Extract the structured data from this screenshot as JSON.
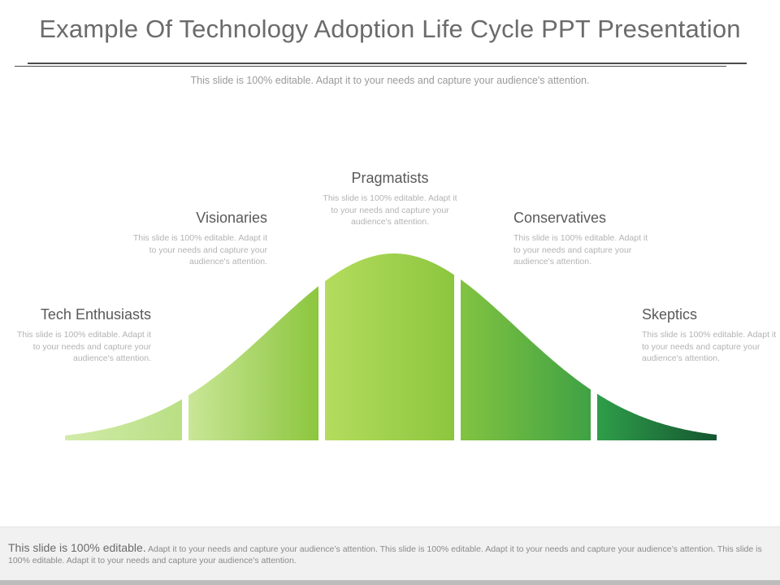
{
  "title": "Example Of Technology Adoption Life Cycle PPT Presentation",
  "subtitle": "This slide is 100% editable. Adapt it to your needs and capture your audience's attention.",
  "stages": [
    {
      "name": "Tech Enthusiasts",
      "desc": "This slide is 100% editable. Adapt it to your needs and capture your audience's attention.",
      "color_start": "#d2ebaa",
      "color_end": "#b9df84"
    },
    {
      "name": "Visionaries",
      "desc": "This slide is 100% editable. Adapt it to your needs and capture your audience's attention.",
      "color_start": "#c9e697",
      "color_end": "#8cc63e"
    },
    {
      "name": "Pragmatists",
      "desc": "This slide is 100% editable. Adapt it to your needs and capture your audience's attention.",
      "color_start": "#b4dc5e",
      "color_end": "#8cc63e"
    },
    {
      "name": "Conservatives",
      "desc": "This slide is 100% editable. Adapt it to your needs and capture your audience's attention.",
      "color_start": "#82c341",
      "color_end": "#3fa244"
    },
    {
      "name": "Skeptics",
      "desc": "This slide is 100% editable. Adapt it to your needs and capture your audience's attention.",
      "color_start": "#2f9e4a",
      "color_end": "#145530"
    }
  ],
  "footer": {
    "lead": "This slide is 100% editable.",
    "body": " Adapt it to your needs and capture your audience’s attention. This slide is 100% editable. Adapt it to your needs and capture your audience’s attention. This slide is 100% editable. Adapt it to your needs and capture your audience’s attention."
  }
}
